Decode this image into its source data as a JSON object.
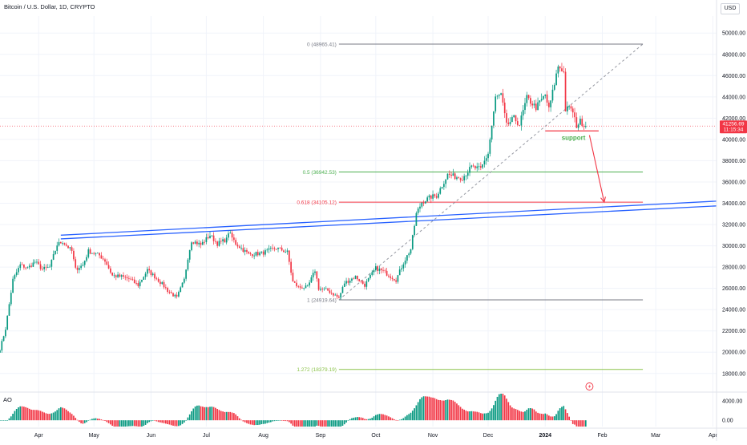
{
  "header": {
    "title": "Bitcoin / U.S. Dollar, 1D, CRYPTO",
    "currency": "USD"
  },
  "indicator_label": "AO",
  "colors": {
    "up": "#089981",
    "down": "#f23645",
    "trendline": "#2962ff",
    "grid": "#f0f3fa",
    "fib_line": "#787b86",
    "fib_half": "#4caf50",
    "fib_618": "#f23645",
    "fib_1272": "#8bc34a",
    "price_tag": "#f23645",
    "support_text": "#4caf50"
  },
  "chart_data": {
    "type": "candlestick",
    "price_axis": {
      "min": 16400,
      "max": 51600,
      "ticks": [
        18000,
        20000,
        22000,
        24000,
        26000,
        28000,
        30000,
        32000,
        34000,
        36000,
        38000,
        40000,
        42000,
        44000,
        46000,
        48000,
        50000
      ],
      "tick_labels": [
        "18000.00",
        "20000.00",
        "22000.00",
        "24000.00",
        "26000.00",
        "28000.00",
        "30000.00",
        "32000.00",
        "34000.00",
        "36000.00",
        "38000.00",
        "40000.00",
        "42000.00",
        "44000.00",
        "46000.00",
        "48000.00",
        "50000.00"
      ]
    },
    "time_axis": {
      "start": "2023-03-11",
      "end": "2024-04-03",
      "ticks": [
        {
          "date": "2023-04-01",
          "label": "Apr"
        },
        {
          "date": "2023-05-01",
          "label": "May"
        },
        {
          "date": "2023-06-01",
          "label": "Jun"
        },
        {
          "date": "2023-07-01",
          "label": "Jul"
        },
        {
          "date": "2023-08-01",
          "label": "Aug"
        },
        {
          "date": "2023-09-01",
          "label": "Sep"
        },
        {
          "date": "2023-10-01",
          "label": "Oct"
        },
        {
          "date": "2023-11-01",
          "label": "Nov"
        },
        {
          "date": "2023-12-01",
          "label": "Dec"
        },
        {
          "date": "2024-01-01",
          "label": "2024"
        },
        {
          "date": "2024-02-01",
          "label": "Feb"
        },
        {
          "date": "2024-03-01",
          "label": "Mar"
        },
        {
          "date": "2024-04-01",
          "label": "Apr"
        }
      ]
    },
    "price_path": [
      [
        "2023-03-11",
        20300
      ],
      [
        "2023-03-14",
        22200
      ],
      [
        "2023-03-18",
        26800
      ],
      [
        "2023-03-22",
        28200
      ],
      [
        "2023-03-26",
        27900
      ],
      [
        "2023-03-30",
        28500
      ],
      [
        "2023-04-03",
        27800
      ],
      [
        "2023-04-07",
        28000
      ],
      [
        "2023-04-11",
        30100
      ],
      [
        "2023-04-14",
        30400
      ],
      [
        "2023-04-19",
        29500
      ],
      [
        "2023-04-21",
        27800
      ],
      [
        "2023-04-25",
        28200
      ],
      [
        "2023-04-28",
        29500
      ],
      [
        "2023-05-04",
        29100
      ],
      [
        "2023-05-07",
        28600
      ],
      [
        "2023-05-11",
        27200
      ],
      [
        "2023-05-16",
        27100
      ],
      [
        "2023-05-20",
        26900
      ],
      [
        "2023-05-25",
        26300
      ],
      [
        "2023-05-30",
        27700
      ],
      [
        "2023-06-03",
        27100
      ],
      [
        "2023-06-07",
        26400
      ],
      [
        "2023-06-10",
        25800
      ],
      [
        "2023-06-15",
        25100
      ],
      [
        "2023-06-19",
        26800
      ],
      [
        "2023-06-21",
        28900
      ],
      [
        "2023-06-23",
        30500
      ],
      [
        "2023-06-28",
        30100
      ],
      [
        "2023-07-03",
        31000
      ],
      [
        "2023-07-07",
        30200
      ],
      [
        "2023-07-12",
        30600
      ],
      [
        "2023-07-13",
        31300
      ],
      [
        "2023-07-17",
        30200
      ],
      [
        "2023-07-24",
        29200
      ],
      [
        "2023-07-31",
        29300
      ],
      [
        "2023-08-08",
        29800
      ],
      [
        "2023-08-14",
        29400
      ],
      [
        "2023-08-17",
        26600
      ],
      [
        "2023-08-20",
        26100
      ],
      [
        "2023-08-25",
        26100
      ],
      [
        "2023-08-29",
        27700
      ],
      [
        "2023-08-31",
        26000
      ],
      [
        "2023-09-05",
        25800
      ],
      [
        "2023-09-11",
        25100
      ],
      [
        "2023-09-14",
        26500
      ],
      [
        "2023-09-20",
        27100
      ],
      [
        "2023-09-25",
        26300
      ],
      [
        "2023-10-01",
        27900
      ],
      [
        "2023-10-05",
        27600
      ],
      [
        "2023-10-12",
        26800
      ],
      [
        "2023-10-16",
        28400
      ],
      [
        "2023-10-20",
        29700
      ],
      [
        "2023-10-23",
        33000
      ],
      [
        "2023-10-26",
        34100
      ],
      [
        "2023-10-31",
        34600
      ],
      [
        "2023-11-03",
        34700
      ],
      [
        "2023-11-09",
        36700
      ],
      [
        "2023-11-13",
        36500
      ],
      [
        "2023-11-17",
        36400
      ],
      [
        "2023-11-22",
        37400
      ],
      [
        "2023-11-27",
        37200
      ],
      [
        "2023-12-01",
        38700
      ],
      [
        "2023-12-05",
        43900
      ],
      [
        "2023-12-08",
        44200
      ],
      [
        "2023-12-11",
        41300
      ],
      [
        "2023-12-15",
        42000
      ],
      [
        "2023-12-18",
        41400
      ],
      [
        "2023-12-22",
        43900
      ],
      [
        "2023-12-27",
        43000
      ],
      [
        "2024-01-01",
        44200
      ],
      [
        "2024-01-03",
        42800
      ],
      [
        "2024-01-08",
        46900
      ],
      [
        "2024-01-10",
        46600
      ],
      [
        "2024-01-11",
        46300
      ],
      [
        "2024-01-12",
        42800
      ],
      [
        "2024-01-15",
        43000
      ],
      [
        "2024-01-18",
        41300
      ],
      [
        "2024-01-20",
        41700
      ],
      [
        "2024-01-23",
        41256.69
      ]
    ],
    "last_price": {
      "value": 41256.69,
      "label": "41256.69",
      "countdown": "11:15:34"
    },
    "fibonacci": [
      {
        "level": "0",
        "price": 48965.41,
        "label": "0 (48965.41)"
      },
      {
        "level": "0.5",
        "price": 36942.53,
        "label": "0.5 (36942.53)"
      },
      {
        "level": "0.618",
        "price": 34105.12,
        "label": "0.618 (34105.12)"
      },
      {
        "level": "1",
        "price": 24919.64,
        "label": "1 (24919.64)"
      },
      {
        "level": "1.272",
        "price": 18379.19,
        "label": "1.272 (18379.19)"
      }
    ],
    "fib_range": {
      "start": "2023-09-11",
      "end": "2024-02-23"
    },
    "fib_diagonal": {
      "from": [
        "2023-09-11",
        24919.64
      ],
      "to": [
        "2024-02-23",
        48965.41
      ]
    },
    "trendlines": [
      {
        "from": [
          "2023-04-13",
          31000
        ],
        "to": [
          "2024-04-03",
          34200
        ]
      },
      {
        "from": [
          "2023-04-13",
          30650
        ],
        "to": [
          "2024-04-03",
          33750
        ]
      }
    ],
    "support": {
      "label": "support",
      "price": 40800,
      "start": "2024-01-01",
      "end": "2024-01-30"
    },
    "arrow": {
      "from": [
        "2024-01-25",
        40400
      ],
      "to": [
        "2024-02-02",
        34100
      ]
    },
    "ao_axis": {
      "min": -1300,
      "max": 5500,
      "ticks": [
        4000,
        0
      ],
      "tick_labels": [
        "4000.00",
        "0.00"
      ]
    }
  }
}
